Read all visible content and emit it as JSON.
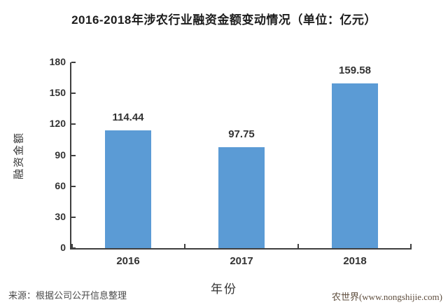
{
  "title": "2016-2018年涉农行业融资金额变动情况（单位：亿元）",
  "chart_data": {
    "type": "bar",
    "categories": [
      "2016",
      "2017",
      "2018"
    ],
    "values": [
      114.44,
      97.75,
      159.58
    ],
    "value_labels": [
      "114.44",
      "97.75",
      "159.58"
    ],
    "title": "2016-2018年涉农行业融资金额变动情况（单位：亿元）",
    "xlabel": "年份",
    "ylabel": "融资金额",
    "ylim": [
      0,
      180
    ],
    "yticks": [
      0,
      30,
      60,
      90,
      120,
      150,
      180
    ],
    "grid": false,
    "legend": "none",
    "bar_color": "#5b9bd5"
  },
  "footer": {
    "source": "来源：根据公司公开信息整理",
    "watermark": "农世界(www.nongshijie.com)"
  },
  "colors": {
    "bar": "#5b9bd5",
    "axis": "#3f3f3f",
    "title_text": "#1c1c1c",
    "label_text": "#333333",
    "source_text": "#4a4a4a",
    "watermark_text": "#5f4e3e",
    "background": "#ffffff"
  }
}
